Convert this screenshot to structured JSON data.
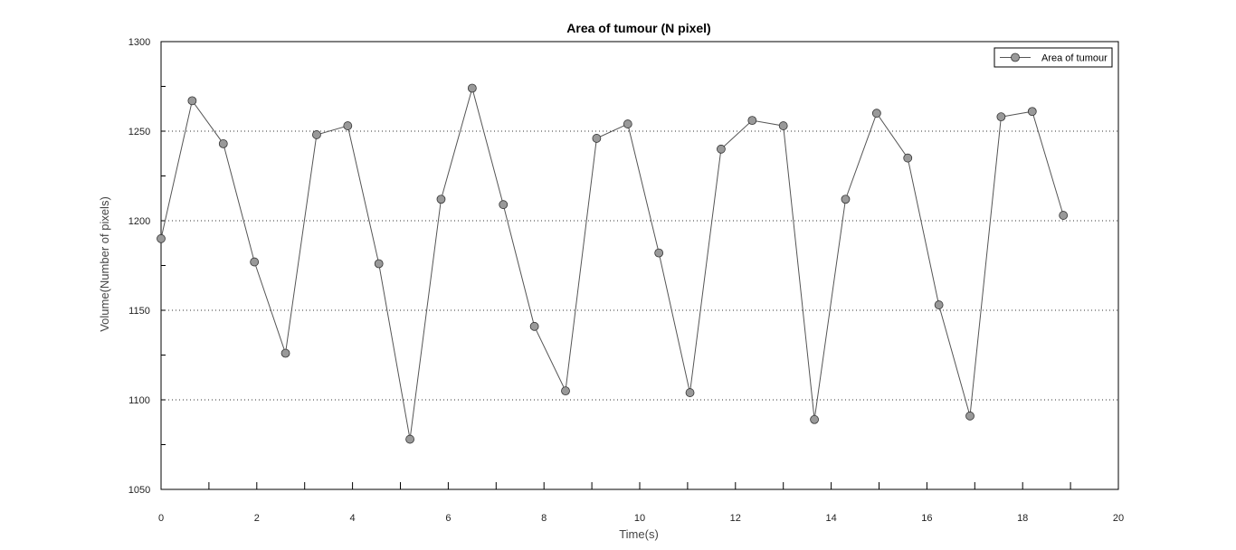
{
  "chart_data": {
    "type": "line",
    "title": "Area of tumour (N pixel)",
    "xlabel": "Time(s)",
    "ylabel": "Volume(Number of pixels)",
    "xlim": [
      0,
      20
    ],
    "ylim": [
      1050,
      1300
    ],
    "xticks": [
      0,
      2,
      4,
      6,
      8,
      10,
      12,
      14,
      16,
      18,
      20
    ],
    "yticks": [
      1050,
      1100,
      1150,
      1200,
      1250,
      1300
    ],
    "grid": "horizontal-dotted",
    "legend_position": "top-right",
    "series": [
      {
        "name": "Area of tumour",
        "color": "#555555",
        "marker_color": "#999999",
        "x": [
          0,
          0.65,
          1.3,
          1.95,
          2.6,
          3.25,
          3.9,
          4.55,
          5.2,
          5.85,
          6.5,
          7.15,
          7.8,
          8.45,
          9.1,
          9.75,
          10.4,
          11.05,
          11.7,
          12.35,
          13.0,
          13.65,
          14.3,
          14.95,
          15.6,
          16.25,
          16.9,
          17.55,
          18.2,
          18.85
        ],
        "y": [
          1190,
          1267,
          1243,
          1177,
          1126,
          1248,
          1253,
          1176,
          1078,
          1212,
          1274,
          1209,
          1141,
          1105,
          1246,
          1254,
          1182,
          1104,
          1240,
          1256,
          1253,
          1089,
          1212,
          1260,
          1235,
          1153,
          1091,
          1258,
          1261,
          1203
        ]
      }
    ]
  }
}
